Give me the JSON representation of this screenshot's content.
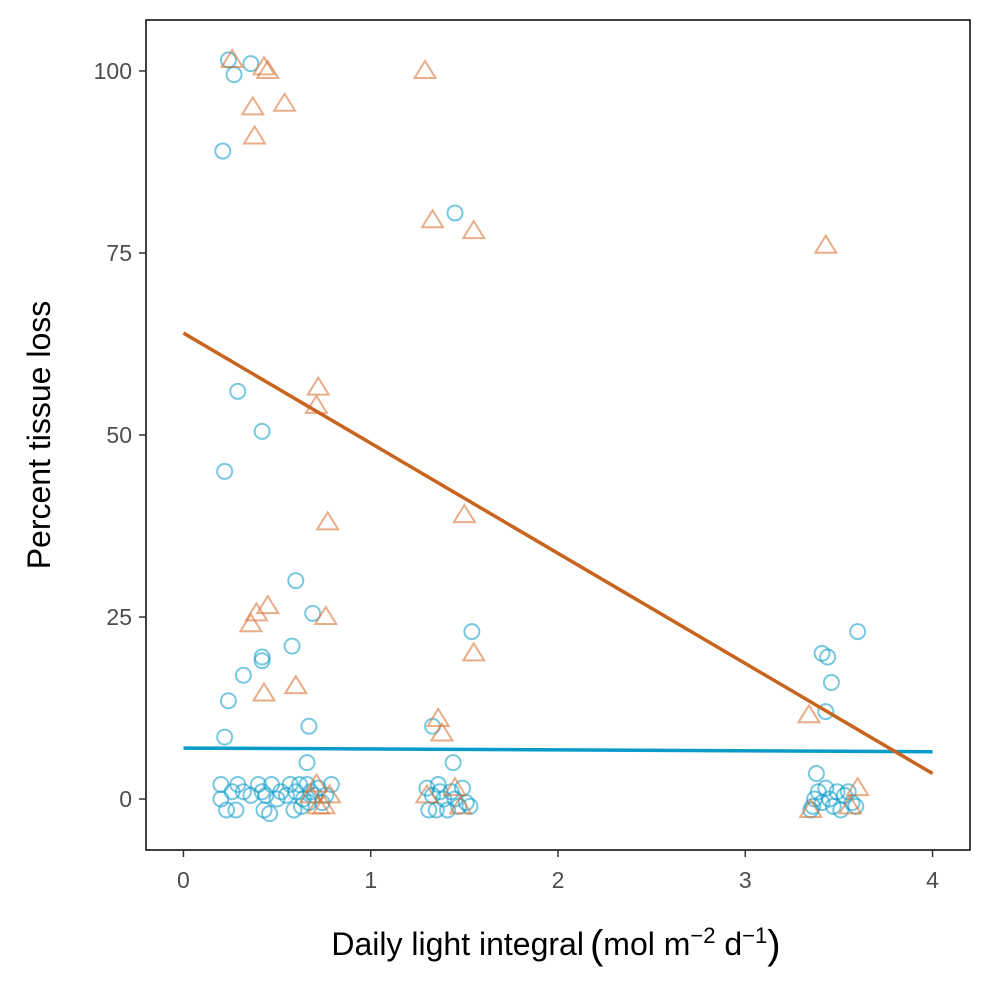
{
  "chart_data": {
    "type": "scatter",
    "title": "",
    "xlabel": {
      "main": "Daily light integral",
      "unit_prefix": "mol m",
      "unit_exp1": "−2",
      "unit_mid": " d",
      "unit_exp2": "−1"
    },
    "ylabel": "Percent tissue loss",
    "xlim": [
      -0.2,
      4.2
    ],
    "ylim": [
      -7,
      107
    ],
    "xticks": [
      0,
      1,
      2,
      3,
      4
    ],
    "yticks": [
      0,
      25,
      50,
      75,
      100
    ],
    "grid": false,
    "legend": "none",
    "series": [
      {
        "marker": "circle",
        "color": "#0a9bc8",
        "points": [
          [
            0.2,
            2
          ],
          [
            0.2,
            0
          ],
          [
            0.23,
            -1.5
          ],
          [
            0.26,
            1
          ],
          [
            0.28,
            -1.5
          ],
          [
            0.29,
            2
          ],
          [
            0.32,
            1
          ],
          [
            0.36,
            0.5
          ],
          [
            0.4,
            2
          ],
          [
            0.42,
            1
          ],
          [
            0.43,
            -1.5
          ],
          [
            0.44,
            0.5
          ],
          [
            0.46,
            -2
          ],
          [
            0.47,
            2
          ],
          [
            0.5,
            0
          ],
          [
            0.52,
            1
          ],
          [
            0.55,
            0.5
          ],
          [
            0.57,
            2
          ],
          [
            0.59,
            -1.5
          ],
          [
            0.6,
            1
          ],
          [
            0.62,
            2
          ],
          [
            0.63,
            -1
          ],
          [
            0.64,
            0
          ],
          [
            0.66,
            2
          ],
          [
            0.67,
            -0.5
          ],
          [
            0.68,
            1
          ],
          [
            0.7,
            0.5
          ],
          [
            0.72,
            1.5
          ],
          [
            0.74,
            -0.5
          ],
          [
            0.76,
            0.5
          ],
          [
            0.79,
            2
          ],
          [
            0.21,
            89
          ],
          [
            0.24,
            101.5
          ],
          [
            0.27,
            99.5
          ],
          [
            0.36,
            101
          ],
          [
            0.29,
            56
          ],
          [
            0.22,
            45
          ],
          [
            0.42,
            50.5
          ],
          [
            0.6,
            30
          ],
          [
            0.69,
            25.5
          ],
          [
            0.58,
            21
          ],
          [
            0.42,
            19.5
          ],
          [
            0.42,
            19
          ],
          [
            0.32,
            17
          ],
          [
            0.24,
            13.5
          ],
          [
            0.67,
            10
          ],
          [
            0.22,
            8.5
          ],
          [
            0.66,
            5
          ],
          [
            1.3,
            1.5
          ],
          [
            1.33,
            0.5
          ],
          [
            1.35,
            -1.5
          ],
          [
            1.37,
            1
          ],
          [
            1.39,
            0
          ],
          [
            1.41,
            -1.5
          ],
          [
            1.43,
            1
          ],
          [
            1.45,
            0
          ],
          [
            1.47,
            -1
          ],
          [
            1.49,
            1.5
          ],
          [
            1.51,
            -0.5
          ],
          [
            1.53,
            -1
          ],
          [
            1.31,
            -1.5
          ],
          [
            1.36,
            2
          ],
          [
            1.33,
            10
          ],
          [
            1.44,
            5
          ],
          [
            1.45,
            80.5
          ],
          [
            1.54,
            23
          ],
          [
            3.35,
            -1.5
          ],
          [
            3.37,
            0
          ],
          [
            3.39,
            1
          ],
          [
            3.41,
            -0.5
          ],
          [
            3.43,
            1.5
          ],
          [
            3.45,
            0
          ],
          [
            3.47,
            -1
          ],
          [
            3.49,
            1
          ],
          [
            3.51,
            -1.5
          ],
          [
            3.53,
            0.5
          ],
          [
            3.55,
            1
          ],
          [
            3.57,
            -0.5
          ],
          [
            3.59,
            -1
          ],
          [
            3.36,
            -1
          ],
          [
            3.38,
            3.5
          ],
          [
            3.41,
            20
          ],
          [
            3.44,
            19.5
          ],
          [
            3.46,
            16
          ],
          [
            3.43,
            12
          ],
          [
            3.6,
            23
          ]
        ]
      },
      {
        "marker": "triangle",
        "color": "#d8773a",
        "points": [
          [
            0.26,
            101.5
          ],
          [
            0.43,
            100.5
          ],
          [
            0.45,
            100
          ],
          [
            1.29,
            100
          ],
          [
            0.37,
            95
          ],
          [
            0.54,
            95.5
          ],
          [
            0.38,
            91
          ],
          [
            1.33,
            79.5
          ],
          [
            1.55,
            78
          ],
          [
            3.43,
            76
          ],
          [
            0.72,
            56.5
          ],
          [
            0.71,
            54
          ],
          [
            0.77,
            38
          ],
          [
            1.5,
            39
          ],
          [
            0.45,
            26.5
          ],
          [
            0.39,
            25.5
          ],
          [
            0.76,
            25
          ],
          [
            0.36,
            24
          ],
          [
            1.55,
            20
          ],
          [
            0.6,
            15.5
          ],
          [
            0.43,
            14.5
          ],
          [
            1.36,
            11
          ],
          [
            1.38,
            9
          ],
          [
            3.34,
            11.5
          ],
          [
            0.71,
            2
          ],
          [
            0.72,
            -1
          ],
          [
            0.75,
            -1
          ],
          [
            0.68,
            0.5
          ],
          [
            0.78,
            0.5
          ],
          [
            1.3,
            0.5
          ],
          [
            1.45,
            1.5
          ],
          [
            1.48,
            -1
          ],
          [
            3.35,
            -1.5
          ],
          [
            3.56,
            -1
          ],
          [
            3.6,
            1.5
          ]
        ]
      }
    ],
    "fit_lines": [
      {
        "color": "#0a9bc8",
        "x": [
          0,
          4
        ],
        "y": [
          7,
          6.5
        ]
      },
      {
        "color": "#c8641e",
        "x": [
          0,
          4
        ],
        "y": [
          64,
          3.5
        ]
      }
    ]
  }
}
